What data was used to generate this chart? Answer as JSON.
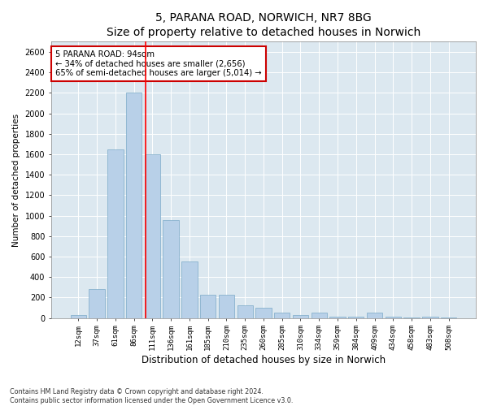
{
  "title": "5, PARANA ROAD, NORWICH, NR7 8BG",
  "subtitle": "Size of property relative to detached houses in Norwich",
  "xlabel": "Distribution of detached houses by size in Norwich",
  "ylabel": "Number of detached properties",
  "categories": [
    "12sqm",
    "37sqm",
    "61sqm",
    "86sqm",
    "111sqm",
    "136sqm",
    "161sqm",
    "185sqm",
    "210sqm",
    "235sqm",
    "260sqm",
    "285sqm",
    "310sqm",
    "334sqm",
    "359sqm",
    "384sqm",
    "409sqm",
    "434sqm",
    "458sqm",
    "483sqm",
    "508sqm"
  ],
  "values": [
    30,
    280,
    1650,
    2200,
    1600,
    960,
    550,
    230,
    230,
    120,
    100,
    55,
    30,
    55,
    10,
    10,
    50,
    10,
    5,
    10,
    5
  ],
  "bar_color": "#b8d0e8",
  "bar_edge_color": "#7aaac8",
  "red_line_label": "5 PARANA ROAD: 94sqm",
  "annotation_line1": "← 34% of detached houses are smaller (2,656)",
  "annotation_line2": "65% of semi-detached houses are larger (5,014) →",
  "ylim": [
    0,
    2700
  ],
  "yticks": [
    0,
    200,
    400,
    600,
    800,
    1000,
    1200,
    1400,
    1600,
    1800,
    2000,
    2200,
    2400,
    2600
  ],
  "plot_bg_color": "#dce8f0",
  "footer_line1": "Contains HM Land Registry data © Crown copyright and database right 2024.",
  "footer_line2": "Contains public sector information licensed under the Open Government Licence v3.0.",
  "annotation_box_color": "#ffffff",
  "annotation_border_color": "#cc0000",
  "title_fontsize": 10,
  "red_line_index": 3.62
}
